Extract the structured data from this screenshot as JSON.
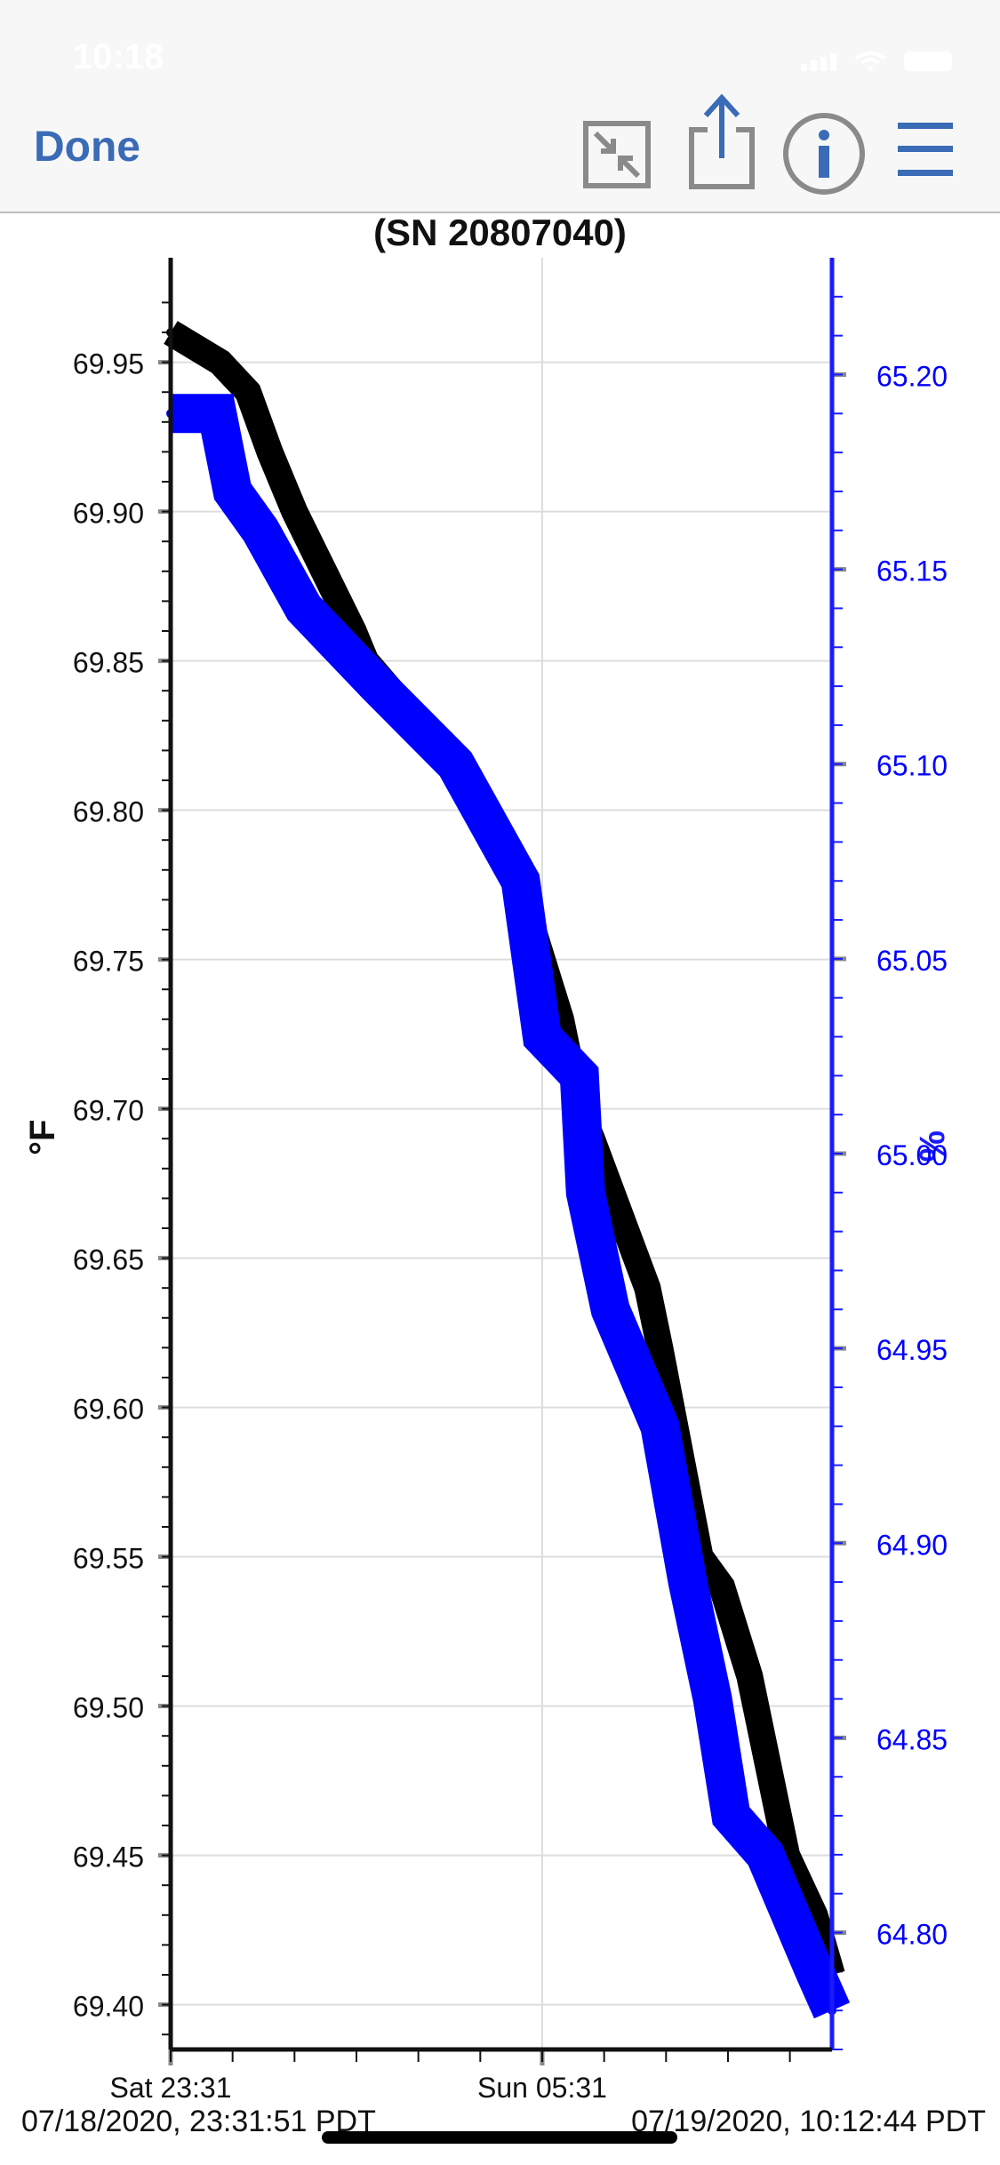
{
  "status_bar": {
    "time": "10:18"
  },
  "nav": {
    "done_label": "Done",
    "icons": [
      "collapse-icon",
      "share-icon",
      "info-icon",
      "menu-icon"
    ],
    "accent_color": "#3a6bb7",
    "icon_color": "#8a8a8a"
  },
  "chart_data": {
    "type": "line",
    "title": "(SN 20807040)",
    "left_axis": {
      "label": "°F",
      "ylim": [
        69.385,
        69.985
      ],
      "ticks": [
        69.95,
        69.9,
        69.85,
        69.8,
        69.75,
        69.7,
        69.65,
        69.6,
        69.55,
        69.5,
        69.45,
        69.4
      ],
      "tick_labels": [
        "69.95",
        "69.90",
        "69.85",
        "69.80",
        "69.75",
        "69.70",
        "69.65",
        "69.60",
        "69.55",
        "69.50",
        "69.45",
        "69.40"
      ],
      "color": "#111111"
    },
    "right_axis": {
      "label": "%",
      "ylim": [
        64.77,
        65.23
      ],
      "ticks": [
        65.2,
        65.15,
        65.1,
        65.05,
        65.0,
        64.95,
        64.9,
        64.85,
        64.8
      ],
      "tick_labels": [
        "65.20",
        "65.15",
        "65.10",
        "65.05",
        "65.00",
        "64.95",
        "64.90",
        "64.85",
        "64.80"
      ],
      "color": "#0000ff"
    },
    "x_axis": {
      "range_hours": [
        0,
        10.68
      ],
      "major_tick_labels": [
        "Sat 23:31",
        "Sun 05:31"
      ],
      "major_tick_hours": [
        0,
        6
      ],
      "start_label": "07/18/2020, 23:31:51 PDT",
      "end_label": "07/19/2020, 10:12:44 PDT"
    },
    "grid": true,
    "series": [
      {
        "name": "°F",
        "axis": "left",
        "color": "#000000",
        "x_hours": [
          0.0,
          0.8,
          1.25,
          1.6,
          2.0,
          2.95,
          3.15,
          4.8,
          5.0,
          5.7,
          6.3,
          6.6,
          6.8,
          7.7,
          7.9,
          8.55,
          8.9,
          9.35,
          9.65,
          9.95,
          10.4,
          10.68
        ],
        "values": [
          69.96,
          69.95,
          69.94,
          69.92,
          69.9,
          69.86,
          69.85,
          69.81,
          69.8,
          69.77,
          69.73,
          69.7,
          69.69,
          69.64,
          69.62,
          69.55,
          69.54,
          69.51,
          69.48,
          69.45,
          69.43,
          69.41
        ]
      },
      {
        "name": "%",
        "axis": "right",
        "color": "#0000ff",
        "x_hours": [
          0.0,
          0.75,
          1.0,
          1.45,
          2.15,
          3.35,
          4.6,
          5.65,
          6.0,
          6.6,
          6.7,
          7.1,
          7.9,
          8.35,
          8.75,
          9.05,
          9.6,
          10.4,
          10.68
        ],
        "values": [
          65.19,
          65.19,
          65.17,
          65.16,
          65.14,
          65.12,
          65.1,
          65.07,
          65.03,
          65.02,
          64.99,
          64.96,
          64.93,
          64.89,
          64.86,
          64.83,
          64.82,
          64.79,
          64.78
        ]
      }
    ]
  }
}
